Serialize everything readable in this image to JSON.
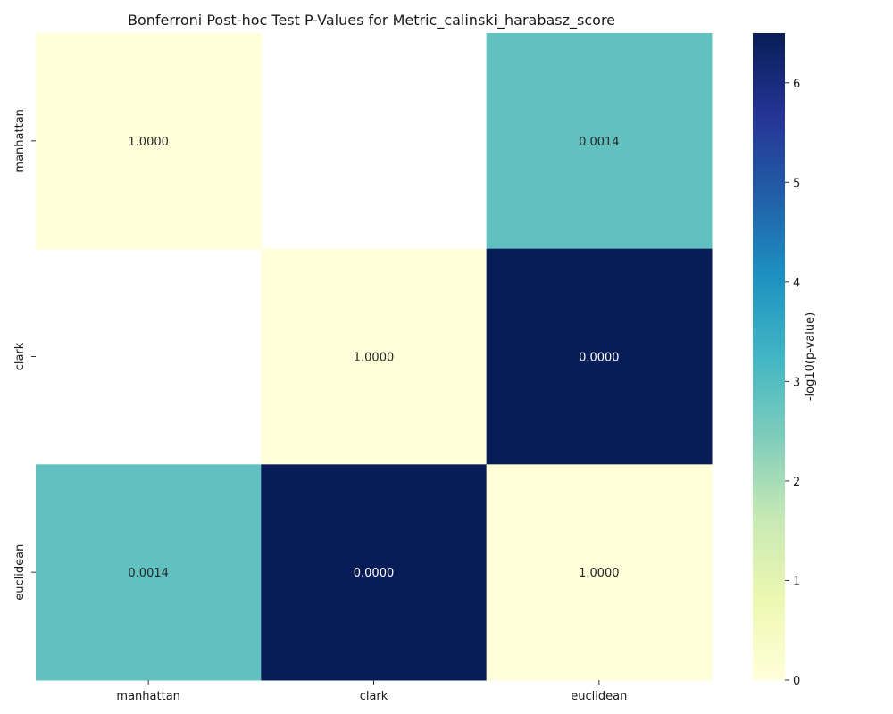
{
  "chart_data": {
    "type": "heatmap",
    "title": "Bonferroni Post-hoc Test P-Values for Metric_calinski_harabasz_score",
    "x_categories": [
      "manhattan",
      "clark",
      "euclidean"
    ],
    "y_categories": [
      "manhattan",
      "clark",
      "euclidean"
    ],
    "cells": [
      [
        {
          "label": "1.0000",
          "value": 0.0
        },
        {
          "label": "",
          "value": null
        },
        {
          "label": "0.0014",
          "value": 2.85
        }
      ],
      [
        {
          "label": "",
          "value": null
        },
        {
          "label": "1.0000",
          "value": 0.0
        },
        {
          "label": "0.0000",
          "value": 6.5
        }
      ],
      [
        {
          "label": "0.0014",
          "value": 2.85
        },
        {
          "label": "0.0000",
          "value": 6.5
        },
        {
          "label": "1.0000",
          "value": 0.0
        }
      ]
    ],
    "colorbar": {
      "label": "-log10(p-value)",
      "range": [
        0,
        6.5
      ],
      "ticks": [
        "0",
        "1",
        "2",
        "3",
        "4",
        "5",
        "6"
      ],
      "colormap": "YlGnBu",
      "colors": [
        "#ffffd9",
        "#edf8b1",
        "#c7e9b4",
        "#7fcdbb",
        "#41b6c4",
        "#1d91c0",
        "#225ea8",
        "#253494",
        "#081d58"
      ]
    }
  }
}
